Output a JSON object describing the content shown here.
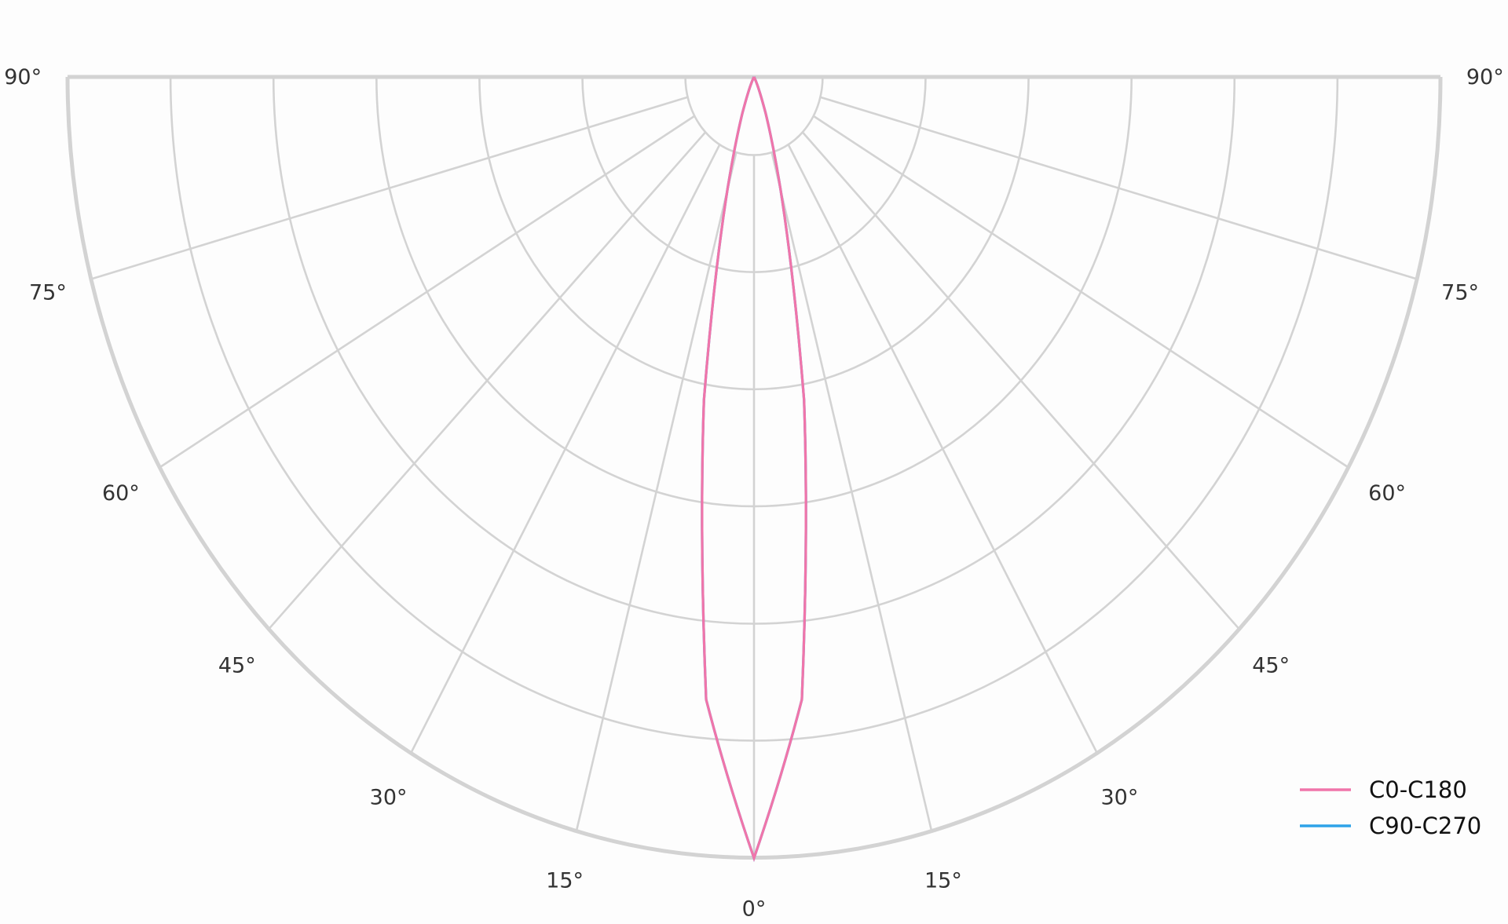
{
  "chart_data": {
    "type": "polar",
    "subtype": "half-polar luminous intensity distribution",
    "angle_tick_labels_left": [
      "0°",
      "15°",
      "30°",
      "45°",
      "60°",
      "75°",
      "90°"
    ],
    "angle_tick_labels_right": [
      "15°",
      "30°",
      "45°",
      "60°",
      "75°",
      "90°"
    ],
    "angle_ticks": [
      0,
      15,
      30,
      45,
      60,
      75,
      90
    ],
    "radial_rings": 7,
    "radial_tick_labels": [],
    "grid": true,
    "legend_position": "bottom-right",
    "series": [
      {
        "name": "C0-C180",
        "color": "#f075aa",
        "angles": [
          0,
          5,
          10,
          15,
          20,
          25,
          30,
          35,
          40,
          45,
          50,
          55,
          60,
          65,
          70,
          75,
          80,
          85,
          90
        ],
        "values": [
          1.0,
          0.8,
          0.42,
          0.15,
          0.05,
          0.012,
          0.002,
          0,
          0,
          0,
          0,
          0,
          0,
          0,
          0,
          0,
          0,
          0,
          0
        ]
      },
      {
        "name": "C90-C270",
        "color": "#2ea3e8",
        "angles": [
          0,
          5,
          10,
          15,
          20,
          25,
          30,
          35,
          40,
          45,
          50,
          55,
          60,
          65,
          70,
          75,
          80,
          85,
          90
        ],
        "values": [
          1.0,
          0.8,
          0.42,
          0.15,
          0.05,
          0.012,
          0.002,
          0,
          0,
          0,
          0,
          0,
          0,
          0,
          0,
          0,
          0,
          0,
          0
        ]
      }
    ]
  }
}
